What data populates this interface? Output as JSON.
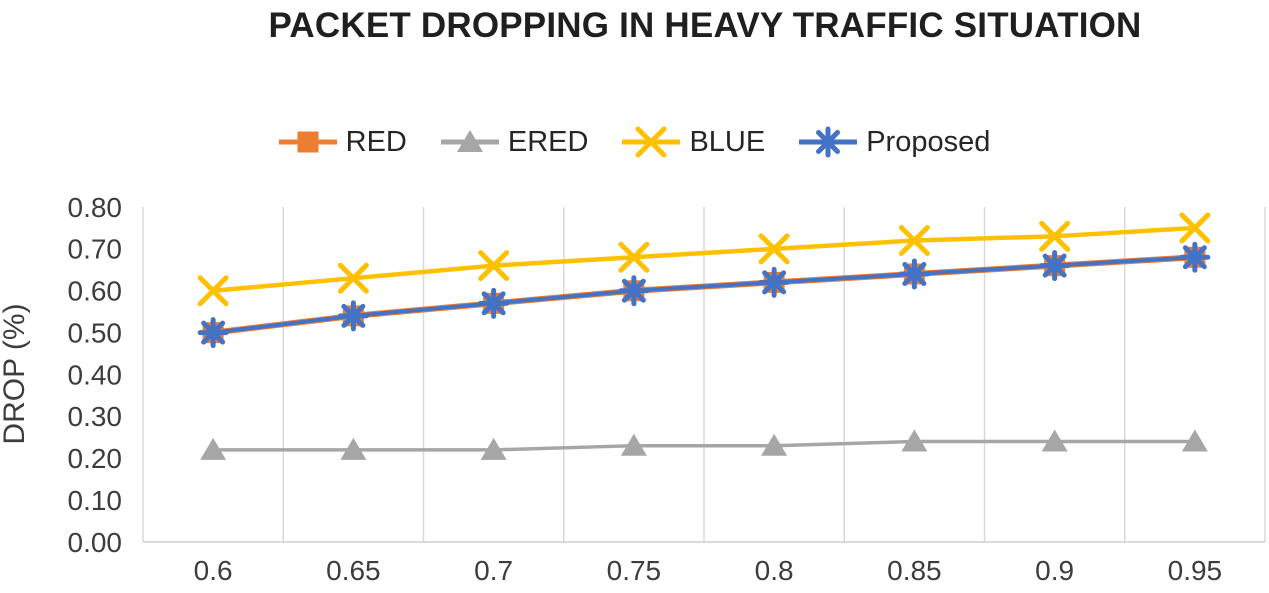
{
  "chart_data": {
    "type": "line",
    "title": "PACKET DROPPING IN HEAVY TRAFFIC SITUATION",
    "xlabel": "",
    "ylabel": "DROP (%)",
    "categories": [
      "0.6",
      "0.65",
      "0.7",
      "0.75",
      "0.8",
      "0.85",
      "0.9",
      "0.95"
    ],
    "y_ticks": [
      "0.00",
      "0.10",
      "0.20",
      "0.30",
      "0.40",
      "0.50",
      "0.60",
      "0.70",
      "0.80"
    ],
    "ylim": [
      0,
      0.8
    ],
    "grid": "vertical-only",
    "legend_position": "top",
    "series": [
      {
        "name": "RED",
        "color": "#ED7D31",
        "marker": "square",
        "values": [
          0.5,
          0.54,
          0.57,
          0.6,
          0.62,
          0.64,
          0.66,
          0.68
        ]
      },
      {
        "name": "ERED",
        "color": "#A6A6A6",
        "marker": "triangle",
        "values": [
          0.22,
          0.22,
          0.22,
          0.23,
          0.23,
          0.24,
          0.24,
          0.24
        ]
      },
      {
        "name": "BLUE",
        "color": "#FFC000",
        "marker": "x",
        "values": [
          0.6,
          0.63,
          0.66,
          0.68,
          0.7,
          0.72,
          0.73,
          0.75
        ]
      },
      {
        "name": "Proposed",
        "color": "#4472C4",
        "marker": "asterisk",
        "values": [
          0.5,
          0.54,
          0.57,
          0.6,
          0.62,
          0.64,
          0.66,
          0.68
        ]
      }
    ],
    "colors": {
      "grid": "#D9D9D9",
      "axis_line": "#D0CECE",
      "axis_text": "#3D3D3D",
      "title_text": "#1F1F1F"
    }
  }
}
